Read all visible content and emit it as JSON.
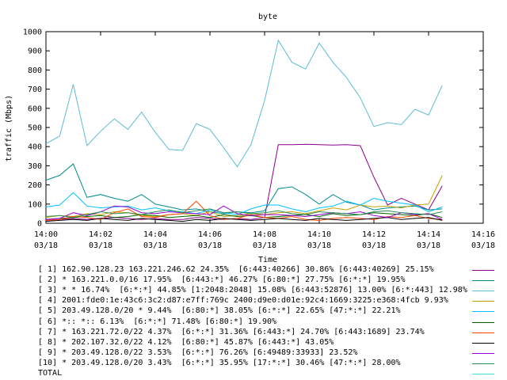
{
  "chart_data": {
    "type": "line",
    "title": "byte",
    "xlabel": "Time",
    "ylabel": "traffic (Mbps)",
    "ylim": [
      0,
      1000
    ],
    "yticks": [
      0,
      100,
      200,
      300,
      400,
      500,
      600,
      700,
      800,
      900,
      1000
    ],
    "xlim": [
      "14:00",
      "14:16"
    ],
    "xticks": [
      {
        "time": "14:00",
        "date": "03/18"
      },
      {
        "time": "14:02",
        "date": "03/18"
      },
      {
        "time": "14:04",
        "date": "03/18"
      },
      {
        "time": "14:06",
        "date": "03/18"
      },
      {
        "time": "14:08",
        "date": "03/18"
      },
      {
        "time": "14:10",
        "date": "03/18"
      },
      {
        "time": "14:12",
        "date": "03/18"
      },
      {
        "time": "14:14",
        "date": "03/18"
      },
      {
        "time": "14:16",
        "date": "03/18"
      }
    ],
    "x": [
      "14:00:00",
      "14:00:30",
      "14:01:00",
      "14:01:30",
      "14:02:00",
      "14:02:30",
      "14:03:00",
      "14:03:30",
      "14:04:00",
      "14:04:30",
      "14:05:00",
      "14:05:30",
      "14:06:00",
      "14:06:30",
      "14:07:00",
      "14:07:30",
      "14:08:00",
      "14:08:30",
      "14:09:00",
      "14:09:30",
      "14:10:00",
      "14:10:30",
      "14:11:00",
      "14:11:30",
      "14:12:00",
      "14:12:30",
      "14:13:00",
      "14:13:30",
      "14:14:00",
      "14:14:30"
    ],
    "series": [
      {
        "name": "[ 1] 162.90.128.23 163.221.246.62 24.35%  [6:443:40266] 30.86% [6:443:40269] 25.15%",
        "color": "#8b008b",
        "values": [
          15,
          20,
          25,
          20,
          25,
          30,
          25,
          20,
          25,
          20,
          20,
          30,
          25,
          20,
          25,
          20,
          30,
          410,
          410,
          412,
          410,
          408,
          410,
          405,
          240,
          95,
          130,
          100,
          70,
          195
        ]
      },
      {
        "name": "[ 2] * 163.221.0.0/16 17.95%  [6:443:*] 46.27% [6:80:*] 27.75% [6:*:*] 19.95%",
        "color": "#008b8b",
        "values": [
          225,
          250,
          310,
          135,
          150,
          130,
          115,
          150,
          100,
          85,
          70,
          75,
          60,
          50,
          60,
          55,
          65,
          180,
          190,
          150,
          100,
          150,
          110,
          95,
          70,
          80,
          85,
          90,
          70,
          75
        ]
      },
      {
        "name": "[ 3] * * 16.74%  [6:*:*] 44.85% [1:2048:2048] 15.08% [6:443:52876] 13.00% [6:*:443] 12.98%",
        "color": "#5bbcd6",
        "values": [
          415,
          455,
          725,
          405,
          480,
          545,
          490,
          580,
          475,
          385,
          380,
          520,
          490,
          395,
          295,
          410,
          640,
          955,
          840,
          805,
          940,
          840,
          760,
          655,
          505,
          525,
          515,
          595,
          565,
          720
        ]
      },
      {
        "name": "[ 4] 2001:fde0:1e:43c6:3c2:d87:e7ff:769c 2400:d9e0:d01e:92c4:1669:3225:e368:4fcb 9.93%",
        "color": "#c8a000",
        "values": [
          30,
          40,
          35,
          50,
          45,
          60,
          55,
          40,
          35,
          45,
          50,
          40,
          60,
          35,
          40,
          50,
          45,
          55,
          60,
          50,
          65,
          80,
          70,
          95,
          85,
          90,
          80,
          95,
          100,
          250
        ]
      },
      {
        "name": "[ 5] 203.49.128.0/20 * 9.44%  [6:80:*] 38.05% [6:*:*] 22.65% [47:*:*] 22.21%",
        "color": "#00bfff",
        "values": [
          85,
          95,
          160,
          90,
          80,
          85,
          90,
          70,
          80,
          65,
          60,
          50,
          70,
          55,
          45,
          75,
          95,
          95,
          75,
          60,
          80,
          90,
          115,
          95,
          130,
          115,
          105,
          95,
          60,
          85
        ]
      },
      {
        "name": "[ 6] *:: *:: 6.13%  [6:*:*] 71.48% [6:80:*] 19.90%",
        "color": "#006400",
        "values": [
          20,
          25,
          30,
          35,
          40,
          30,
          35,
          45,
          40,
          30,
          35,
          40,
          30,
          45,
          35,
          40,
          30,
          35,
          40,
          45,
          35,
          50,
          40,
          45,
          55,
          50,
          45,
          40,
          50,
          30
        ]
      },
      {
        "name": "[ 7] * 163.221.72.0/22 4.37%  [6:*:*] 31.36% [6:443:*] 24.70% [6:443:1689] 23.74%",
        "color": "#ff4500",
        "values": [
          15,
          20,
          35,
          30,
          20,
          55,
          75,
          35,
          30,
          45,
          50,
          115,
          40,
          20,
          25,
          45,
          30,
          25,
          35,
          20,
          15,
          25,
          30,
          25,
          20,
          35,
          30,
          40,
          25,
          20
        ]
      },
      {
        "name": "[ 8] * 202.107.32.0/22 4.12%  [6:80:*] 45.87% [6:443:*] 43.05%",
        "color": "#000000",
        "values": [
          10,
          15,
          20,
          15,
          25,
          20,
          15,
          25,
          20,
          15,
          10,
          20,
          15,
          25,
          20,
          15,
          20,
          25,
          20,
          15,
          25,
          20,
          15,
          20,
          25,
          30,
          20,
          25,
          30,
          15
        ]
      },
      {
        "name": "[ 9] * 203.49.128.0/22 3.53%  [6:*:*] 76.26% [6:49489:33933] 23.52%",
        "color": "#9400d3",
        "values": [
          20,
          25,
          55,
          40,
          60,
          90,
          85,
          55,
          50,
          60,
          55,
          50,
          45,
          90,
          50,
          40,
          45,
          45,
          40,
          35,
          45,
          55,
          50,
          60,
          40,
          30,
          55,
          45,
          50,
          20
        ]
      },
      {
        "name": "[10] * 203.49.128.0/20 3.43%  [6:*:*] 35.95% [17:*:*] 30.46% [47:*:*] 28.00%",
        "color": "#2e8b57",
        "values": [
          35,
          40,
          30,
          45,
          60,
          50,
          55,
          45,
          60,
          70,
          55,
          65,
          75,
          55,
          60,
          50,
          55,
          65,
          50,
          45,
          60,
          55,
          50,
          45,
          60,
          65,
          55,
          50,
          45,
          60
        ]
      }
    ],
    "total_label": "TOTAL",
    "total_color": "#40e0d0",
    "grid": false,
    "legend_position": "bottom"
  }
}
